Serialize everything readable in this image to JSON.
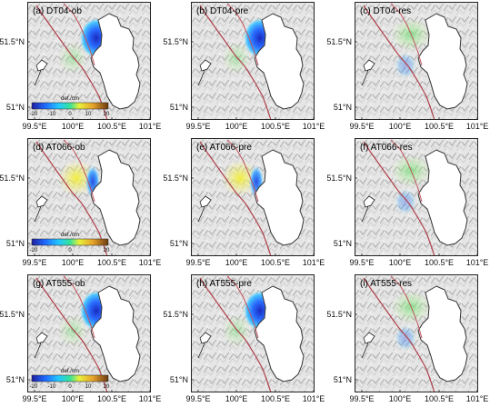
{
  "axis": {
    "x_ticks": [
      "99.5°E",
      "100°E",
      "100.5°E",
      "101°E"
    ],
    "y_ticks": [
      "51.5°N",
      "51°N"
    ]
  },
  "colorbar": {
    "unit": "def./cm"
  },
  "panels": [
    {
      "label": "(a) DT04-ob",
      "type": "ob",
      "signal": "dt04",
      "colorbar": [
        "-20",
        "-10",
        "0",
        "10",
        "20"
      ]
    },
    {
      "label": "(b) DT04-pre",
      "type": "pre",
      "signal": "dt04"
    },
    {
      "label": "(c) DT04-res",
      "type": "res",
      "signal": "dt04"
    },
    {
      "label": "(d) AT066-ob",
      "type": "ob",
      "signal": "at066",
      "colorbar": [
        "-20",
        "0",
        "20"
      ]
    },
    {
      "label": "(e) AT066-pre",
      "type": "pre",
      "signal": "at066"
    },
    {
      "label": "(f) AT066-res",
      "type": "res",
      "signal": "at066"
    },
    {
      "label": "(g) AT555-ob",
      "type": "ob",
      "signal": "at555",
      "colorbar": [
        "-20",
        "-10",
        "0",
        "10",
        "20"
      ]
    },
    {
      "label": "(h) AT555-pre",
      "type": "pre",
      "signal": "at555"
    },
    {
      "label": "(i) AT555-res",
      "type": "res",
      "signal": "at555"
    }
  ]
}
